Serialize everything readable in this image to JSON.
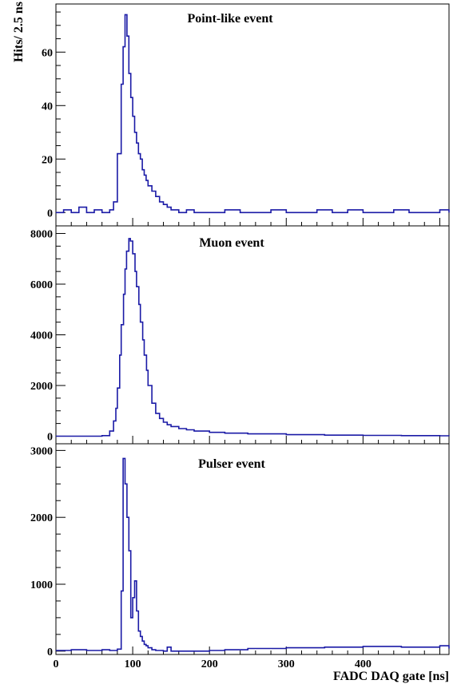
{
  "chart_data": [
    {
      "type": "line",
      "title": "Point-like event",
      "ylabel": "Hits/ 2.5 ns",
      "xlim": [
        0,
        512
      ],
      "ylim": [
        -5,
        78
      ],
      "yticks": [
        0,
        20,
        40,
        60
      ],
      "series": [
        {
          "color": "#1a1aa6",
          "x": [
            0,
            10,
            20,
            30,
            40,
            50,
            60,
            70,
            75,
            80,
            85,
            87.5,
            90,
            92.5,
            95,
            97.5,
            100,
            102.5,
            105,
            107.5,
            110,
            112.5,
            115,
            117.5,
            120,
            125,
            130,
            135,
            140,
            145,
            150,
            160,
            170,
            180,
            200,
            220,
            240,
            260,
            280,
            300,
            320,
            340,
            360,
            380,
            400,
            420,
            440,
            460,
            480,
            500,
            512
          ],
          "values": [
            0,
            1,
            0,
            2,
            0,
            1,
            0,
            1,
            4,
            22,
            48,
            62,
            74,
            66,
            52,
            43,
            36,
            30,
            26,
            22,
            20,
            16,
            14,
            12,
            10,
            8,
            6,
            4,
            3,
            2,
            1,
            0,
            1,
            0,
            0,
            1,
            0,
            0,
            1,
            0,
            0,
            1,
            0,
            1,
            0,
            0,
            1,
            0,
            0,
            1,
            0
          ]
        }
      ]
    },
    {
      "type": "line",
      "title": "Muon event",
      "xlim": [
        0,
        512
      ],
      "ylim": [
        -300,
        8300
      ],
      "yticks": [
        0,
        2000,
        4000,
        6000,
        8000
      ],
      "series": [
        {
          "color": "#1a1aa6",
          "x": [
            0,
            20,
            40,
            60,
            70,
            75,
            78,
            80,
            83,
            85,
            88,
            90,
            92,
            95,
            97,
            100,
            103,
            105,
            108,
            110,
            113,
            115,
            118,
            120,
            125,
            130,
            135,
            140,
            145,
            150,
            160,
            170,
            180,
            200,
            220,
            250,
            300,
            350,
            400,
            450,
            500,
            512
          ],
          "values": [
            0,
            0,
            0,
            20,
            200,
            600,
            1100,
            1900,
            3200,
            4400,
            5600,
            6600,
            7300,
            7800,
            7700,
            7200,
            6500,
            5900,
            5200,
            4500,
            3800,
            3200,
            2600,
            2000,
            1300,
            900,
            700,
            550,
            450,
            380,
            300,
            250,
            200,
            150,
            120,
            90,
            60,
            40,
            30,
            20,
            15,
            10
          ]
        }
      ]
    },
    {
      "type": "line",
      "title": "Pulser event",
      "xlabel": "FADC DAQ gate [ns]",
      "xlim": [
        0,
        512
      ],
      "ylim": [
        -50,
        3100
      ],
      "yticks": [
        0,
        1000,
        2000,
        3000
      ],
      "xticks": [
        0,
        100,
        200,
        300,
        400
      ],
      "series": [
        {
          "color": "#1a1aa6",
          "x": [
            0,
            20,
            40,
            60,
            70,
            80,
            85,
            87.5,
            90,
            92.5,
            95,
            97.5,
            100,
            102.5,
            105,
            107.5,
            110,
            112.5,
            115,
            117.5,
            120,
            125,
            130,
            140,
            145,
            150,
            160,
            180,
            200,
            220,
            250,
            300,
            350,
            400,
            450,
            500,
            512
          ],
          "values": [
            10,
            20,
            10,
            20,
            10,
            30,
            900,
            2880,
            2500,
            2000,
            1500,
            500,
            800,
            1050,
            600,
            300,
            220,
            150,
            100,
            80,
            50,
            20,
            10,
            0,
            60,
            0,
            0,
            0,
            10,
            20,
            40,
            50,
            60,
            70,
            60,
            80,
            40
          ]
        }
      ]
    }
  ]
}
